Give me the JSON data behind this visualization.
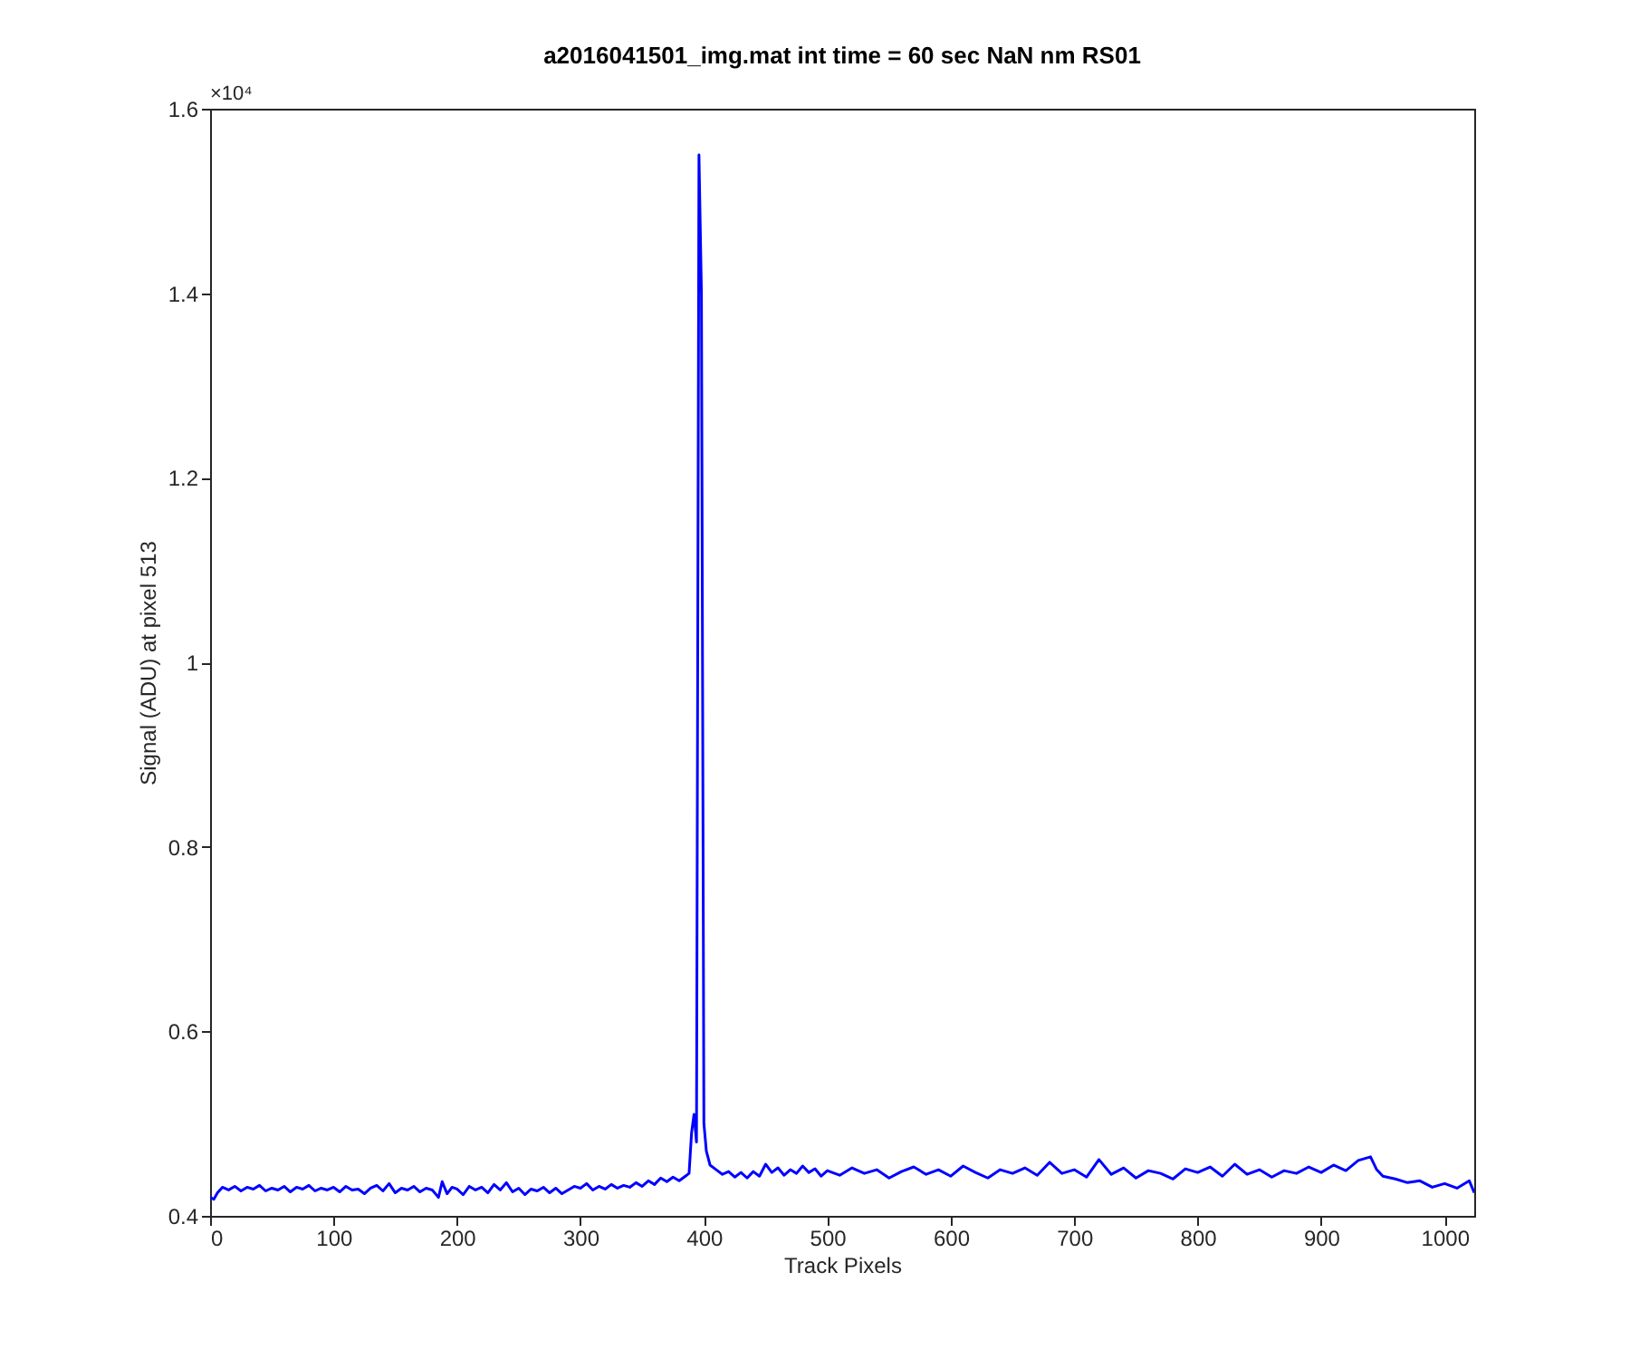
{
  "chart_data": {
    "type": "line",
    "title": "a2016041501_img.mat int time = 60 sec  NaN nm RS01",
    "xlabel": "Track Pixels",
    "ylabel": "Signal (ADU) at pixel 513",
    "annotations": [
      "×10⁴"
    ],
    "xlim": [
      0,
      1024
    ],
    "xticks": [
      0,
      100,
      200,
      300,
      400,
      500,
      600,
      700,
      800,
      900,
      1000
    ],
    "ylim": [
      0.4,
      1.6
    ],
    "yticks": [
      0.4,
      0.6,
      0.8,
      1,
      1.2,
      1.4,
      1.6
    ],
    "grid": false,
    "marker": "none",
    "line_style": "solid",
    "series": [
      {
        "color": "#0000ff",
        "x": [
          0,
          3,
          6,
          10,
          15,
          20,
          25,
          30,
          35,
          40,
          45,
          50,
          55,
          60,
          65,
          70,
          75,
          80,
          85,
          90,
          95,
          100,
          105,
          110,
          115,
          120,
          125,
          130,
          135,
          140,
          145,
          150,
          155,
          160,
          165,
          170,
          175,
          180,
          185,
          188,
          192,
          196,
          200,
          205,
          210,
          215,
          220,
          225,
          230,
          235,
          240,
          245,
          250,
          255,
          260,
          265,
          270,
          275,
          280,
          285,
          290,
          295,
          300,
          305,
          310,
          315,
          320,
          325,
          330,
          335,
          340,
          345,
          350,
          355,
          360,
          365,
          370,
          375,
          380,
          385,
          388,
          390,
          392,
          394,
          396,
          398,
          400,
          402,
          405,
          410,
          415,
          420,
          425,
          430,
          435,
          440,
          445,
          450,
          455,
          460,
          465,
          470,
          475,
          480,
          485,
          490,
          495,
          500,
          510,
          520,
          530,
          540,
          550,
          560,
          570,
          580,
          590,
          600,
          610,
          620,
          630,
          640,
          650,
          660,
          670,
          680,
          690,
          700,
          710,
          720,
          730,
          740,
          750,
          760,
          770,
          780,
          790,
          800,
          810,
          820,
          830,
          840,
          850,
          860,
          870,
          880,
          890,
          900,
          910,
          920,
          930,
          940,
          945,
          950,
          960,
          970,
          980,
          990,
          1000,
          1010,
          1020,
          1024
        ],
        "values": [
          0.42,
          0.418,
          0.425,
          0.431,
          0.428,
          0.432,
          0.427,
          0.431,
          0.429,
          0.433,
          0.427,
          0.43,
          0.428,
          0.432,
          0.426,
          0.431,
          0.429,
          0.433,
          0.427,
          0.43,
          0.428,
          0.431,
          0.426,
          0.432,
          0.428,
          0.429,
          0.424,
          0.43,
          0.433,
          0.427,
          0.435,
          0.425,
          0.43,
          0.428,
          0.432,
          0.426,
          0.43,
          0.428,
          0.42,
          0.437,
          0.424,
          0.431,
          0.429,
          0.423,
          0.432,
          0.428,
          0.431,
          0.425,
          0.434,
          0.428,
          0.436,
          0.426,
          0.43,
          0.423,
          0.429,
          0.427,
          0.431,
          0.425,
          0.43,
          0.424,
          0.428,
          0.432,
          0.43,
          0.435,
          0.428,
          0.432,
          0.429,
          0.434,
          0.43,
          0.433,
          0.431,
          0.436,
          0.432,
          0.438,
          0.434,
          0.441,
          0.437,
          0.442,
          0.438,
          0.443,
          0.446,
          0.49,
          0.51,
          0.48,
          1.55,
          1.4,
          0.5,
          0.47,
          0.455,
          0.45,
          0.445,
          0.448,
          0.442,
          0.447,
          0.441,
          0.448,
          0.443,
          0.456,
          0.447,
          0.452,
          0.444,
          0.45,
          0.446,
          0.454,
          0.447,
          0.451,
          0.443,
          0.449,
          0.444,
          0.452,
          0.446,
          0.45,
          0.441,
          0.448,
          0.453,
          0.445,
          0.45,
          0.443,
          0.454,
          0.447,
          0.441,
          0.45,
          0.446,
          0.452,
          0.444,
          0.458,
          0.446,
          0.45,
          0.442,
          0.461,
          0.445,
          0.452,
          0.441,
          0.449,
          0.446,
          0.44,
          0.451,
          0.447,
          0.453,
          0.443,
          0.456,
          0.445,
          0.45,
          0.442,
          0.449,
          0.446,
          0.453,
          0.447,
          0.455,
          0.449,
          0.46,
          0.464,
          0.45,
          0.443,
          0.44,
          0.436,
          0.438,
          0.431,
          0.435,
          0.43,
          0.438,
          0.425
        ]
      }
    ]
  }
}
